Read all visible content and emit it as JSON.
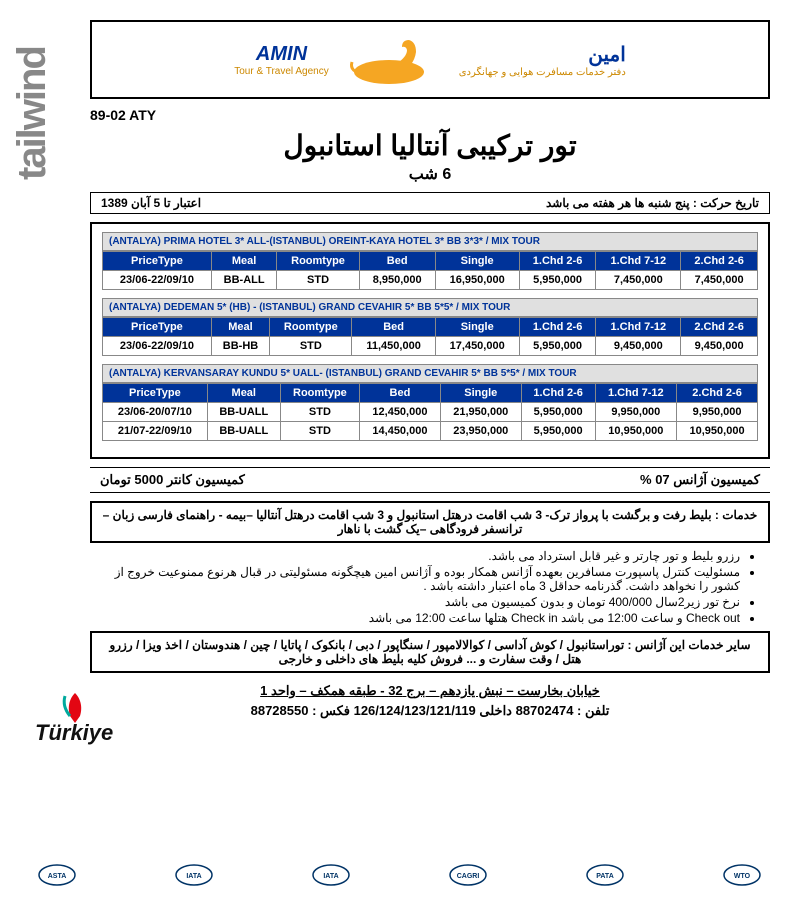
{
  "header": {
    "brand_en": "AMIN",
    "brand_en_sub": "Tour & Travel Agency",
    "brand_fa": "امین",
    "brand_fa_sub": "دفتر خدمات مسافرت هوایی و جهانگردی",
    "code": "89-02 ATY"
  },
  "title": "تور ترکیبی آنتالیا استانبول",
  "subtitle": "6 شب",
  "departure_label": "تاریخ حرکت : پنج شنبه ها هر هفته می باشد",
  "validity_label": "اعتبار تا 5 آبان 1389",
  "table_headers": [
    "PriceType",
    "Meal",
    "Roomtype",
    "Bed",
    "Single",
    "1.Chd 2-6",
    "1.Chd 7-12",
    "2.Chd 2-6"
  ],
  "tables": [
    {
      "title": "(ANTALYA) PRIMA HOTEL 3* ALL-(ISTANBUL) OREINT-KAYA HOTEL 3* BB  3*3*  / MIX TOUR",
      "rows": [
        [
          "23/06-22/09/10",
          "BB-ALL",
          "STD",
          "8,950,000",
          "16,950,000",
          "5,950,000",
          "7,450,000",
          "7,450,000"
        ]
      ]
    },
    {
      "title": "(ANTALYA) DEDEMAN 5* (HB) - (ISTANBUL) GRAND CEVAHIR 5* BB  5*5* / MIX TOUR",
      "rows": [
        [
          "23/06-22/09/10",
          "BB-HB",
          "STD",
          "11,450,000",
          "17,450,000",
          "5,950,000",
          "9,450,000",
          "9,450,000"
        ]
      ]
    },
    {
      "title": "(ANTALYA) KERVANSARAY KUNDU 5* UALL- (ISTANBUL) GRAND CEVAHIR 5* BB  5*5* / MIX TOUR",
      "rows": [
        [
          "23/06-20/07/10",
          "BB-UALL",
          "STD",
          "12,450,000",
          "21,950,000",
          "5,950,000",
          "9,950,000",
          "9,950,000"
        ],
        [
          "21/07-22/09/10",
          "BB-UALL",
          "STD",
          "14,450,000",
          "23,950,000",
          "5,950,000",
          "10,950,000",
          "10,950,000"
        ]
      ]
    }
  ],
  "commission": {
    "agency": "کمیسیون آژانس  07 %",
    "counter": "کمیسیون کانتر 5000 تومان"
  },
  "services": "خدمات : بلیط رفت و برگشت با پرواز ترک-  3 شب اقامت درهتل استانبول و 3 شب اقامت درهتل آنتالیا  –بیمه - راهنمای فارسی زبان – ترانسفر فرودگاهی –یک گشت  با ناهار",
  "notes": [
    "رزرو بلیط  و تور چارتر و غیر قابل استرداد می باشد.",
    "مسئولیت کنترل پاسپورت مسافرین بعهده آژانس همکار بوده و آژانس امین هیچگونه مسئولیتی در قبال هرنوع ممنوعیت خروج از کشور را نخواهد داشت. گذرنامه حداقل 3 ماه اعتبار داشته باشد .",
    "نرخ تور زیر2سال 400/000 تومان و بدون کمیسیون می باشد",
    "Check out   و  ساعت 12:00 می باشد Check in  هتلها ساعت 12:00 می باشد"
  ],
  "other_services": "سایر خدمات این آژانس : توراستانبول / کوش آداسی / کوالالامپور / سنگاپور / دبی / بانکوک / پاتایا / چین / هندوستان / اخذ ویزا / رزرو هتل / وقت سفارت و ... فروش کلیه بلیط های داخلی و خارجی",
  "address": "خیابان بخارست – نبش یازدهم – برج 32  - طبقه همکف – واحد 1",
  "phone": "تلفن :   88702474  داخلی 126/124/123/121/119  فکس : 88728550",
  "side_brand": "tailwind",
  "turkiye": "Türkiye",
  "footer_logos": [
    "ASTA",
    "IATA",
    "IATA",
    "CAGRI",
    "PATA",
    "WTO"
  ],
  "colors": {
    "accent": "#003399",
    "gold": "#cc8800"
  }
}
